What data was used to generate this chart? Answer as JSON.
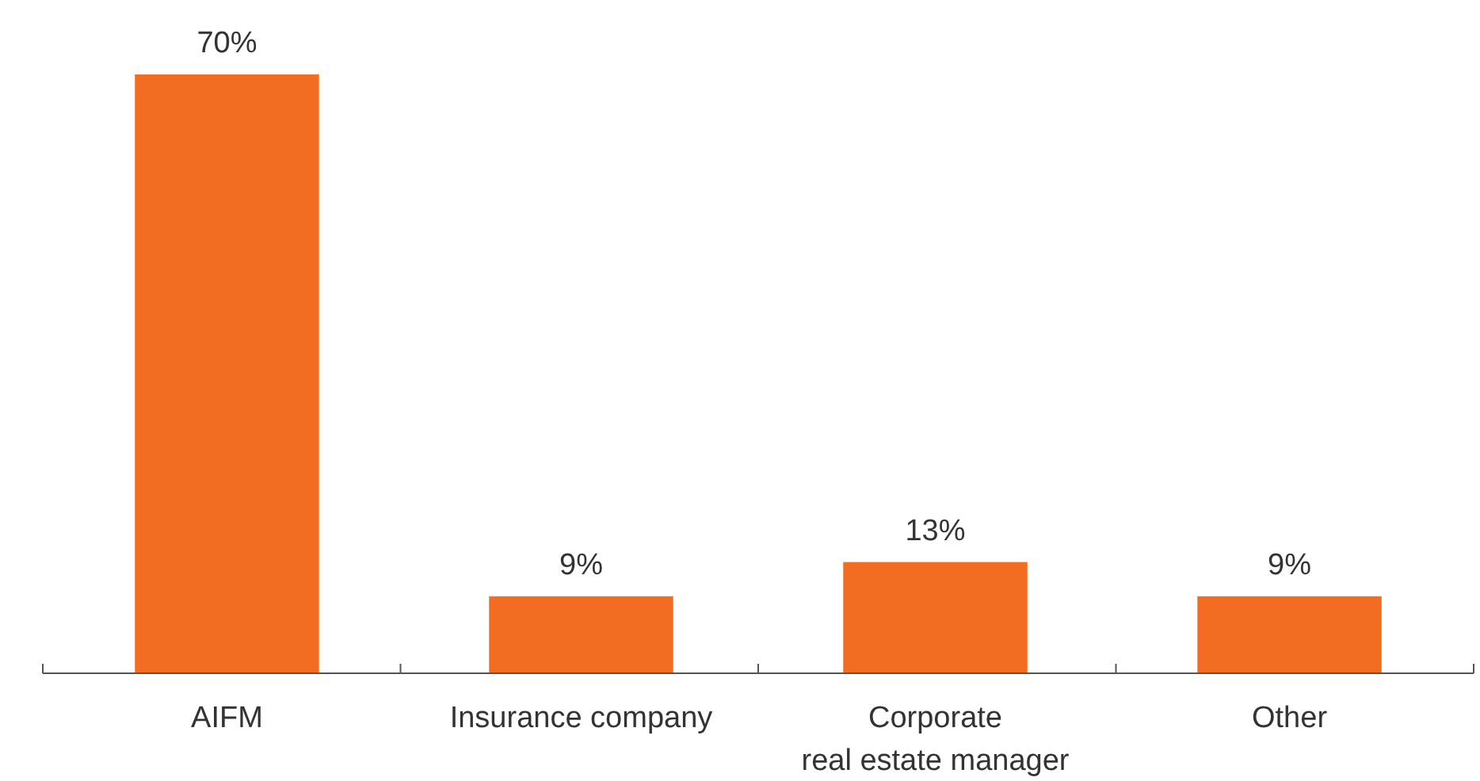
{
  "chart_data": {
    "type": "bar",
    "categories": [
      "AIFM",
      "Insurance company",
      "Corporate\nreal estate manager",
      "Other"
    ],
    "values": [
      70,
      9,
      13,
      9
    ],
    "value_labels": [
      "70%",
      "9%",
      "13%",
      "9%"
    ],
    "color": "#f26d21"
  }
}
